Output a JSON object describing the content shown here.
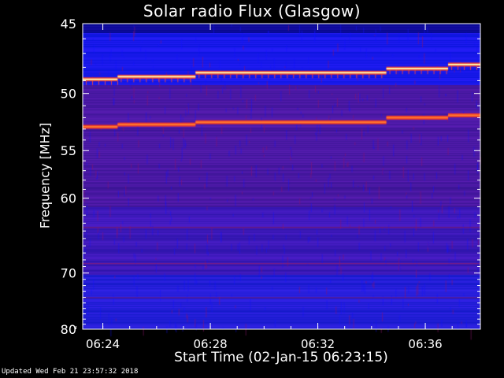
{
  "chart_data": {
    "type": "heatmap",
    "title": "Solar radio Flux (Glasgow)",
    "xlabel": "Start Time (02-Jan-15 06:23:15)",
    "ylabel": "Frequency [MHz]",
    "x_ticks": [
      "06:24",
      "06:28",
      "06:32",
      "06:36"
    ],
    "x_tick_minutes": [
      0.75,
      4.75,
      8.75,
      12.75
    ],
    "xlim_minutes": [
      0,
      14.8
    ],
    "y_ticks": [
      45,
      50,
      55,
      60,
      70,
      80
    ],
    "ylim": [
      45,
      80
    ],
    "y_scale": "reciprocal",
    "bright_emission_bands": [
      {
        "segments": [
          {
            "x_start_minutes": 0,
            "x_end_minutes": 1.3,
            "mhz": 48.9
          },
          {
            "x_start_minutes": 1.3,
            "x_end_minutes": 4.2,
            "mhz": 48.7
          },
          {
            "x_start_minutes": 4.2,
            "x_end_minutes": 11.3,
            "mhz": 48.4
          },
          {
            "x_start_minutes": 11.3,
            "x_end_minutes": 13.6,
            "mhz": 48.1
          },
          {
            "x_start_minutes": 13.6,
            "x_end_minutes": 14.8,
            "mhz": 47.8
          }
        ]
      },
      {
        "segments": [
          {
            "x_start_minutes": 0,
            "x_end_minutes": 1.3,
            "mhz": 52.8
          },
          {
            "x_start_minutes": 1.3,
            "x_end_minutes": 4.2,
            "mhz": 52.6
          },
          {
            "x_start_minutes": 4.2,
            "x_end_minutes": 11.3,
            "mhz": 52.4
          },
          {
            "x_start_minutes": 11.3,
            "x_end_minutes": 13.6,
            "mhz": 52.0
          },
          {
            "x_start_minutes": 13.6,
            "x_end_minutes": 14.8,
            "mhz": 51.8
          }
        ]
      }
    ],
    "colors": {
      "low": "#1414e6",
      "mid": "#5a1c96",
      "high": "#ff3c1e",
      "peak": "#ffffb4"
    }
  },
  "footer": "Updated Wed Feb 21 23:57:32 2018"
}
